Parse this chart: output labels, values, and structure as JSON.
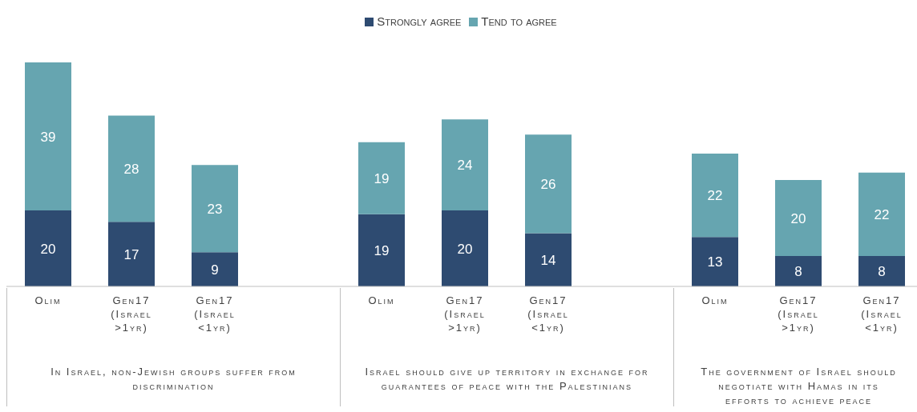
{
  "chart_data": {
    "type": "bar",
    "stacked": true,
    "data_labels": true,
    "legend": "top",
    "categories": [
      "Olim",
      "Gen17 (Israel >1yr)",
      "Gen17 (Israel <1yr)",
      "Olim",
      "Gen17 (Israel >1yr)",
      "Gen17 (Israel <1yr)",
      "Olim",
      "Gen17 (Israel >1yr)",
      "Gen17 (Israel <1yr)"
    ],
    "series": [
      {
        "name": "Strongly agree",
        "color": "#2e4b71",
        "values": [
          20,
          17,
          9,
          19,
          20,
          14,
          13,
          8,
          8
        ]
      },
      {
        "name": "Tend to agree",
        "color": "#66a5b0",
        "values": [
          39,
          28,
          23,
          19,
          24,
          26,
          22,
          20,
          22
        ]
      }
    ],
    "annotations": [
      "In Israel, non-Jewish groups suffer from discrimination",
      "Israel should give up territory in exchange for guarantees of peace with the Palestinians",
      "The government of Israel should negotiate with Hamas in its efforts to achieve peace"
    ]
  }
}
